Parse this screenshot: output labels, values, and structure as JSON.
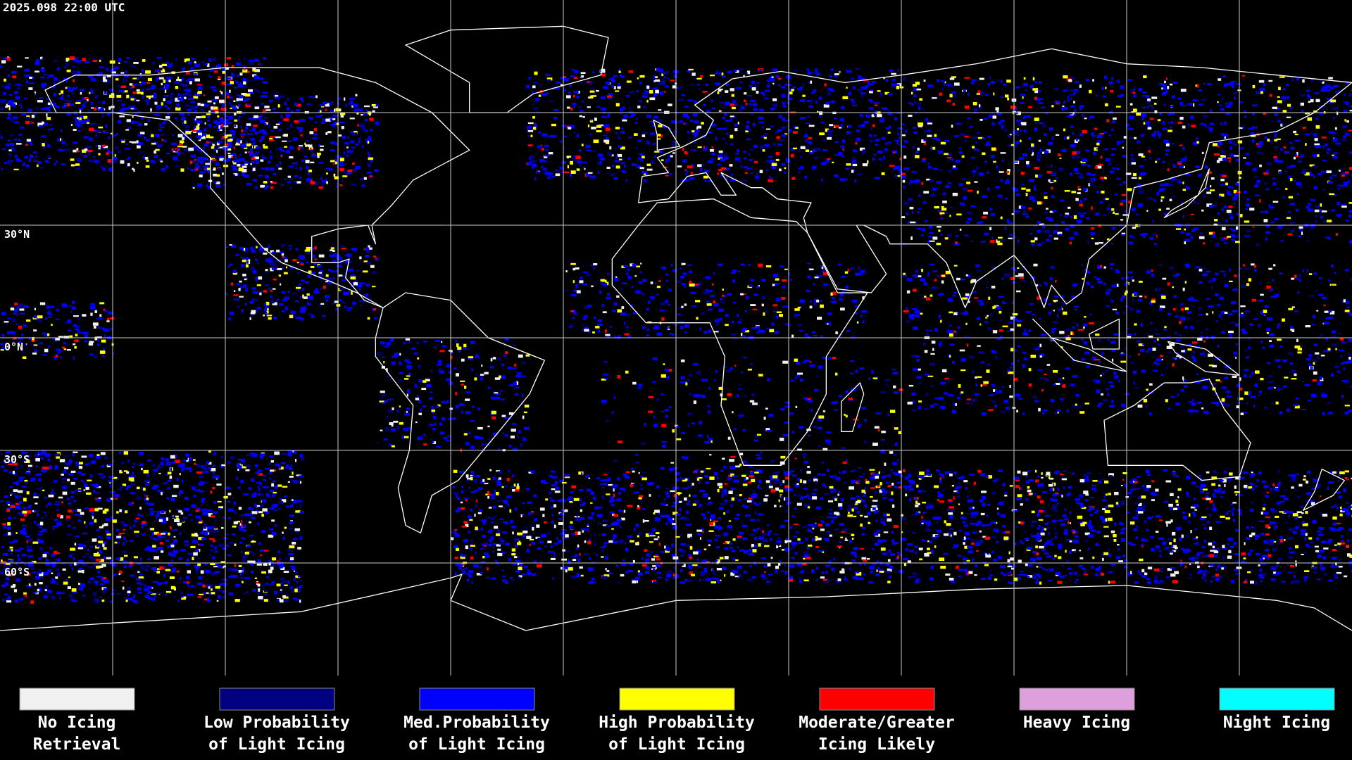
{
  "header": {
    "timestamp": "2025.098 22:00 UTC"
  },
  "map": {
    "latitude_labels": [
      "30°N",
      "0°N",
      "30°S",
      "60°S"
    ]
  },
  "legend": [
    {
      "color": "#f0f0f0",
      "label_lines": [
        "No Icing",
        "Retrieval"
      ]
    },
    {
      "color": "#000080",
      "label_lines": [
        "Low Probability",
        "of Light Icing"
      ]
    },
    {
      "color": "#0000ff",
      "label_lines": [
        "Med.Probability",
        "of Light Icing"
      ]
    },
    {
      "color": "#ffff00",
      "label_lines": [
        "High Probability",
        "of Light Icing"
      ]
    },
    {
      "color": "#ff0000",
      "label_lines": [
        "Moderate/Greater",
        "Icing Likely"
      ]
    },
    {
      "color": "#dda0dd",
      "label_lines": [
        "Heavy Icing"
      ]
    },
    {
      "color": "#00ffff",
      "label_lines": [
        "Night Icing"
      ]
    }
  ]
}
